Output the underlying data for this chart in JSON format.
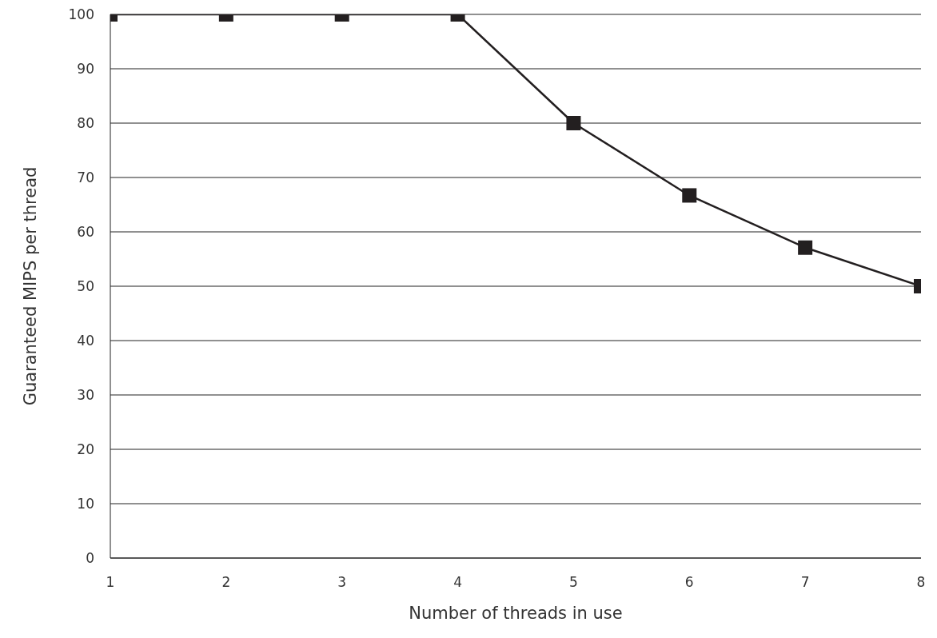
{
  "chart_data": {
    "type": "line",
    "xlabel": "Number of threads in use",
    "ylabel": "Guaranteed MIPS per thread",
    "x": [
      1,
      2,
      3,
      4,
      5,
      6,
      7,
      8
    ],
    "series": [
      {
        "color": "#231f20",
        "values": [
          100,
          100,
          100,
          100,
          80,
          66.7,
          57.1,
          50
        ]
      }
    ],
    "xlim": [
      1,
      8
    ],
    "xticks": [
      1,
      2,
      3,
      4,
      5,
      6,
      7,
      8
    ],
    "ylim": [
      0,
      100
    ],
    "yticks": [
      0,
      10,
      20,
      30,
      40,
      50,
      60,
      70,
      80,
      90,
      100
    ],
    "grid": "y",
    "legend": false,
    "marker": "square",
    "line_style": "solid"
  }
}
